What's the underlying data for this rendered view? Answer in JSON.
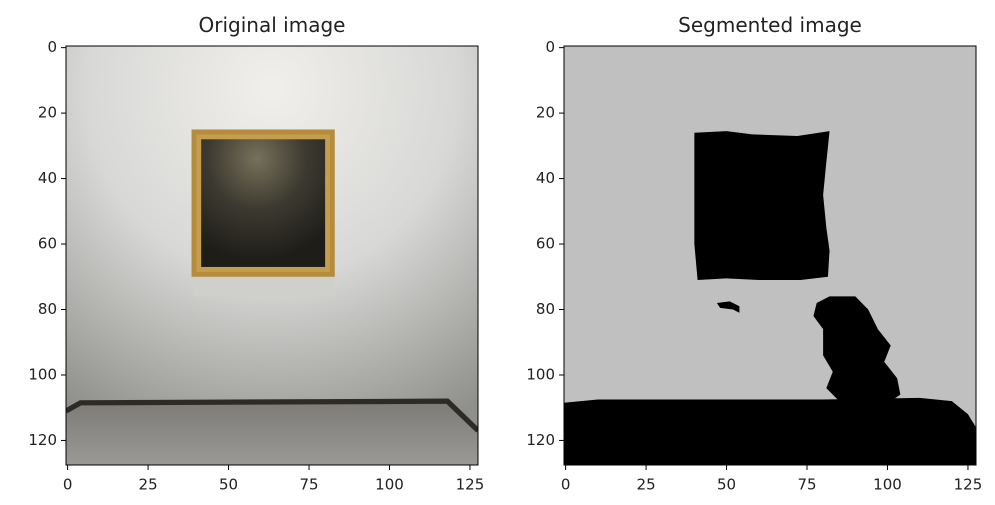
{
  "chart_data": [
    {
      "type": "image",
      "title": "Original image",
      "xlim": [
        -0.5,
        127.5
      ],
      "ylim": [
        127.5,
        -0.5
      ],
      "xticks": [
        0,
        25,
        50,
        75,
        100,
        125
      ],
      "yticks": [
        0,
        20,
        40,
        60,
        80,
        100,
        120
      ]
    },
    {
      "type": "image",
      "title": "Segmented image",
      "xlim": [
        -0.5,
        127.5
      ],
      "ylim": [
        127.5,
        -0.5
      ],
      "xticks": [
        0,
        25,
        50,
        75,
        100,
        125
      ],
      "yticks": [
        0,
        20,
        40,
        60,
        80,
        100,
        120
      ]
    }
  ]
}
